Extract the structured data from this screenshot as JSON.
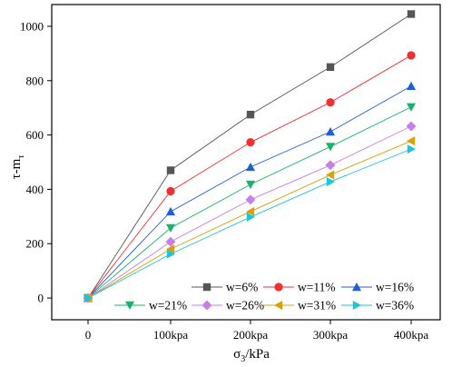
{
  "chart_data": {
    "type": "line",
    "xlabel": "σ3/kPa",
    "xlabel_main": "σ",
    "xlabel_sub": "3",
    "xlabel_rest": "/kPa",
    "ylabel": "τ-m",
    "ylabel_main": "τ-m",
    "ylabel_sub": "τ",
    "categories": [
      "0",
      "100kpa",
      "200kpa",
      "300kpa",
      "400kpa"
    ],
    "ylim": [
      -80,
      1080
    ],
    "yticks": [
      0,
      200,
      400,
      600,
      800,
      1000
    ],
    "grid": false,
    "legend_position": "bottom-right",
    "series": [
      {
        "name": "w=6%",
        "marker": "square",
        "color": "#555555",
        "values": [
          0,
          470,
          675,
          850,
          1045
        ]
      },
      {
        "name": "w=11%",
        "marker": "circle",
        "color": "#f03030",
        "values": [
          0,
          393,
          573,
          720,
          893
        ]
      },
      {
        "name": "w=16%",
        "marker": "triangle-up",
        "color": "#1e5fd6",
        "values": [
          0,
          318,
          482,
          612,
          780
        ]
      },
      {
        "name": "w=21%",
        "marker": "triangle-down",
        "color": "#18b36a",
        "values": [
          0,
          258,
          418,
          557,
          703
        ]
      },
      {
        "name": "w=26%",
        "marker": "diamond",
        "color": "#c77ee6",
        "values": [
          0,
          207,
          362,
          489,
          632
        ]
      },
      {
        "name": "w=31%",
        "marker": "triangle-left",
        "color": "#d9a00a",
        "values": [
          0,
          180,
          318,
          453,
          578
        ]
      },
      {
        "name": "w=36%",
        "marker": "triangle-right",
        "color": "#1fc4d6",
        "values": [
          0,
          162,
          298,
          428,
          548
        ]
      }
    ]
  }
}
